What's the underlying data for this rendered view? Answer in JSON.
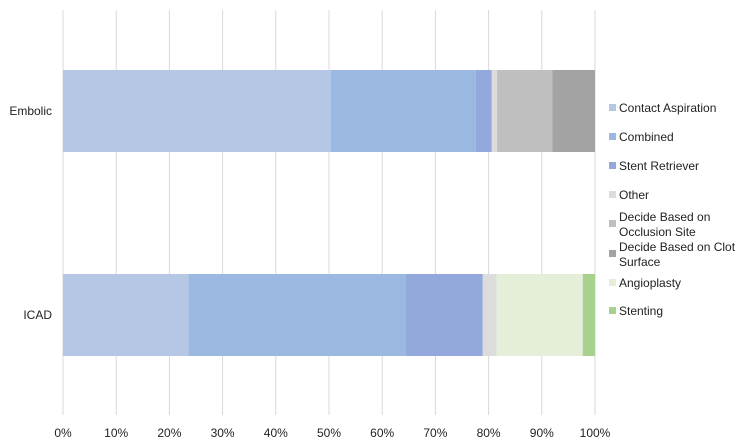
{
  "chart_data": {
    "type": "bar",
    "orientation": "horizontal",
    "stacked": true,
    "percent": true,
    "categories": [
      "Embolic",
      "ICAD"
    ],
    "series": [
      {
        "name": "Contact Aspiration",
        "color": "#b6c7e6",
        "values": [
          50.3,
          23.6
        ]
      },
      {
        "name": "Combined",
        "color": "#9bb9e0",
        "values": [
          27.3,
          40.8
        ]
      },
      {
        "name": "Stent Retriever",
        "color": "#93a9dc",
        "values": [
          3.0,
          14.5
        ]
      },
      {
        "name": "Other",
        "color": "#dcdcdc",
        "values": [
          1.0,
          2.6
        ]
      },
      {
        "name": "Decide Based on Occlusion Site",
        "color": "#bfbfbf",
        "values": [
          10.4,
          0
        ]
      },
      {
        "name": "Decide Based on Clot Surface",
        "color": "#a3a3a3",
        "values": [
          8.0,
          0
        ]
      },
      {
        "name": "Angioplasty",
        "color": "#e5eed9",
        "values": [
          0,
          16.2
        ]
      },
      {
        "name": "Stenting",
        "color": "#a9d18e",
        "values": [
          0,
          2.3
        ]
      }
    ],
    "legend_lines": [
      [
        "Contact Aspiration"
      ],
      [
        "Combined"
      ],
      [
        "Stent Retriever"
      ],
      [
        "Other"
      ],
      [
        "Decide Based on",
        "Occlusion Site"
      ],
      [
        "Decide Based on Clot",
        "Surface"
      ],
      [
        "Angioplasty"
      ],
      [
        "Stenting"
      ]
    ],
    "xlim": [
      0,
      100
    ],
    "xticks": [
      "0%",
      "10%",
      "20%",
      "30%",
      "40%",
      "50%",
      "60%",
      "70%",
      "80%",
      "90%",
      "100%"
    ],
    "grid": true,
    "legend_position": "right",
    "title": "",
    "xlabel": "",
    "ylabel": ""
  }
}
